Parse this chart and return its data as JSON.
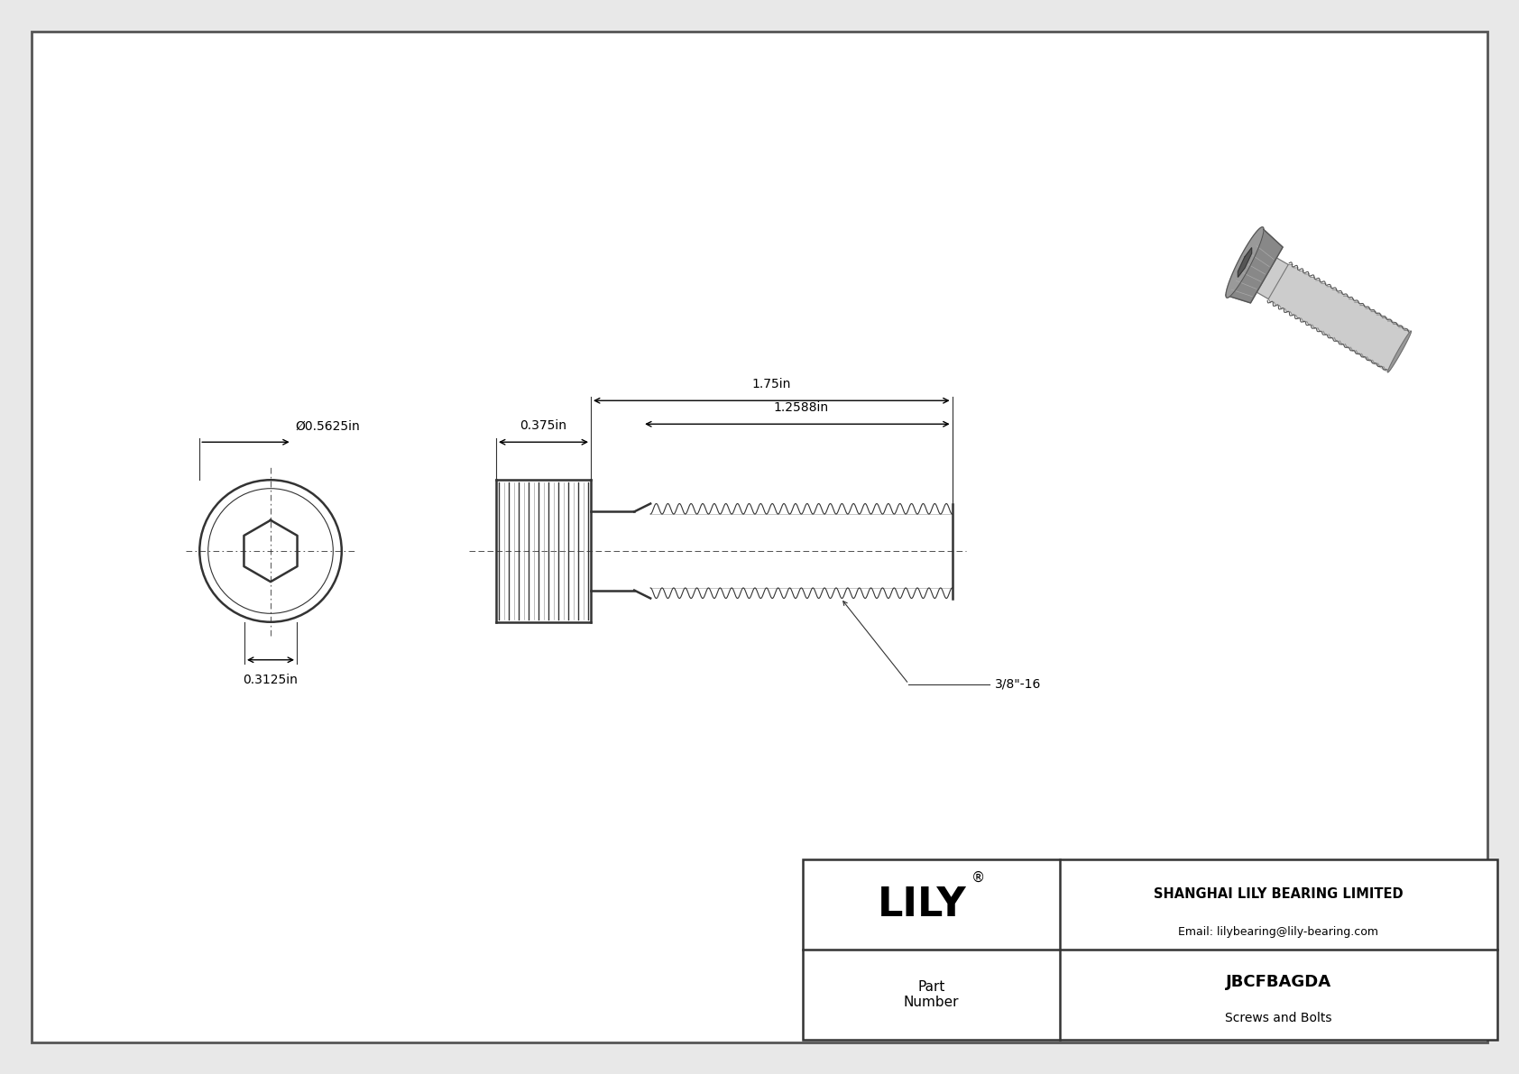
{
  "bg_color": "#e8e8e8",
  "drawing_bg": "#ffffff",
  "border_color": "#555555",
  "line_color": "#333333",
  "dim_color": "#333333",
  "title_company": "SHANGHAI LILY BEARING LIMITED",
  "title_email": "Email: lilybearing@lily-bearing.com",
  "part_number": "JBCFBAGDA",
  "part_category": "Screws and Bolts",
  "part_label": "Part\nNumber",
  "lily_text": "LILY",
  "dim_diameter": "Ø0.5625in",
  "dim_shank": "0.3125in",
  "dim_head_width": "0.375in",
  "dim_total_length": "1.75in",
  "dim_thread_length": "1.2588in",
  "dim_thread_label": "3/8\"-16",
  "font_color": "#000000",
  "fig_width": 16.84,
  "fig_height": 11.91,
  "dpi": 100
}
